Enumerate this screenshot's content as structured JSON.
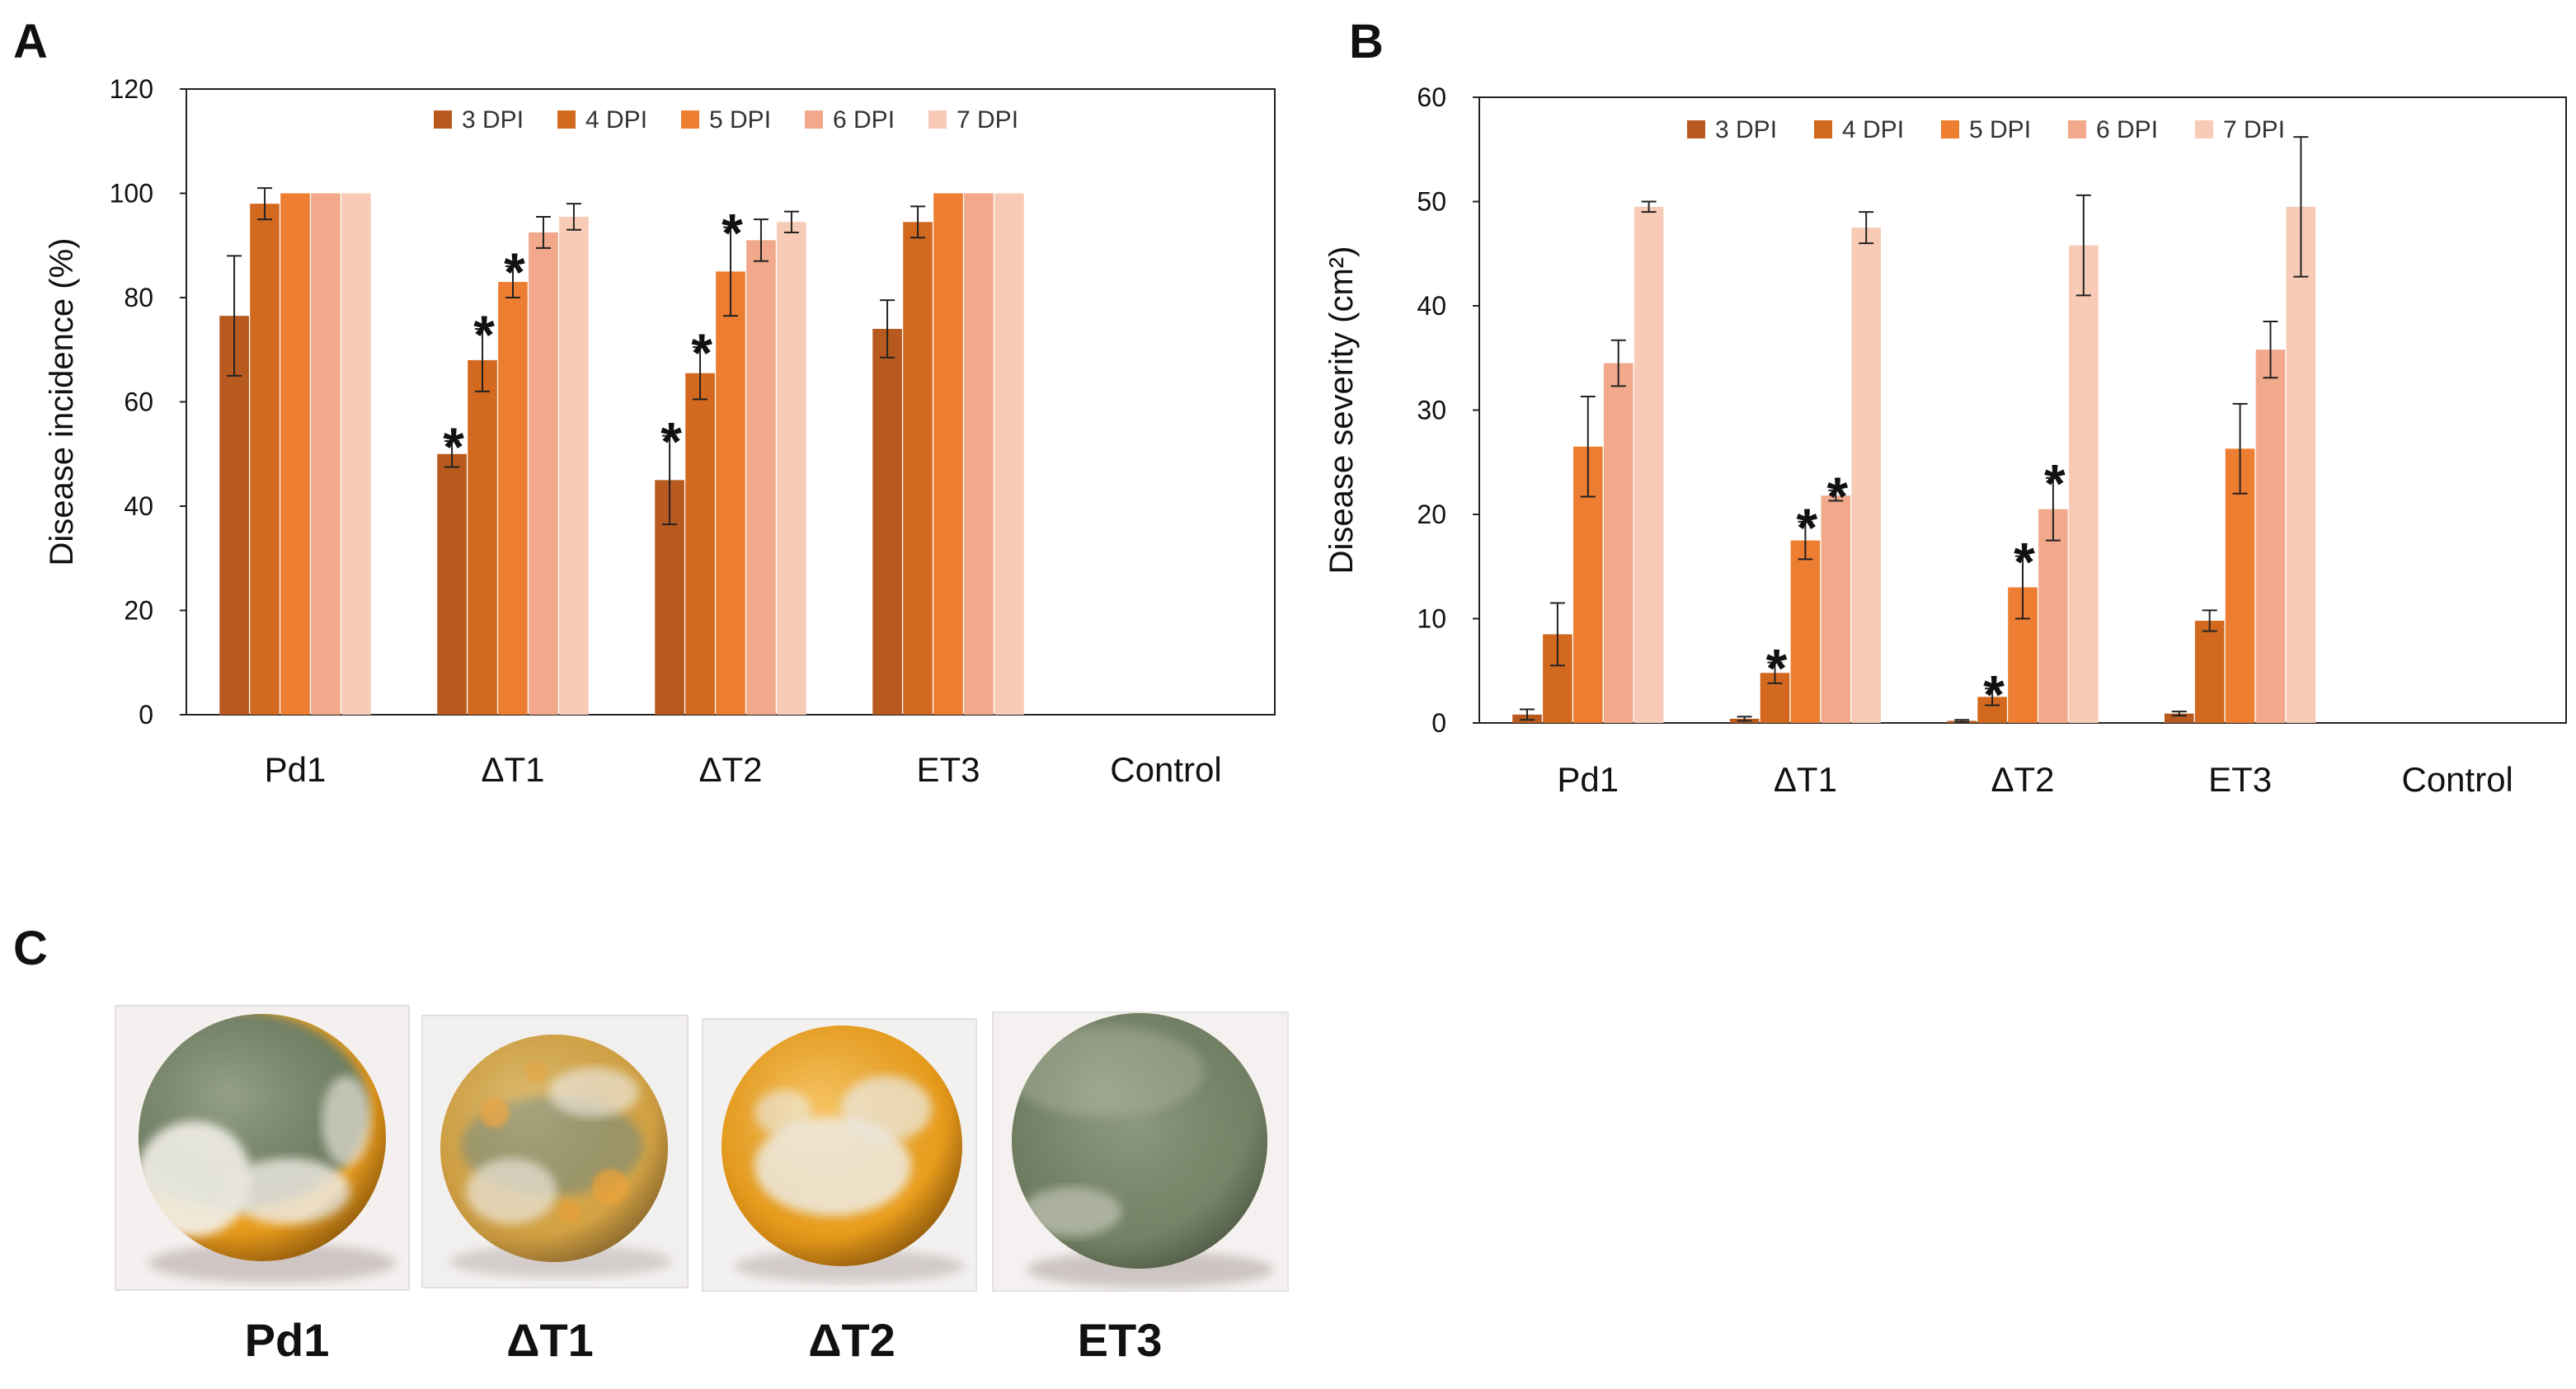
{
  "colors": {
    "series": [
      "#b85a20",
      "#d2691e",
      "#ed7d31",
      "#f1a88b",
      "#f8cbb6"
    ],
    "axis": "#111111",
    "error": "#222222"
  },
  "chart_data": [
    {
      "type": "bar",
      "panel": "A",
      "ylabel": "Disease incidence (%)",
      "ylim": [
        0,
        120
      ],
      "yticks": [
        0,
        20,
        40,
        60,
        80,
        100,
        120
      ],
      "categories": [
        "Pd1",
        "ΔT1",
        "ΔT2",
        "ET3",
        "Control"
      ],
      "legend": "top",
      "series": [
        {
          "name": "3 DPI",
          "values": [
            76.5,
            50,
            45,
            74,
            0
          ],
          "errors": [
            11.5,
            2.5,
            8.5,
            5.5,
            0
          ],
          "stars": [
            false,
            true,
            true,
            false,
            false
          ]
        },
        {
          "name": "4 DPI",
          "values": [
            98,
            68,
            65.5,
            94.5,
            0
          ],
          "errors": [
            3,
            6,
            5,
            3,
            0
          ],
          "stars": [
            false,
            true,
            true,
            false,
            false
          ]
        },
        {
          "name": "5 DPI",
          "values": [
            100,
            83,
            85,
            100,
            0
          ],
          "errors": [
            0,
            3,
            8.5,
            0,
            0
          ],
          "stars": [
            false,
            true,
            true,
            false,
            false
          ]
        },
        {
          "name": "6 DPI",
          "values": [
            100,
            92.5,
            91,
            100,
            0
          ],
          "errors": [
            0,
            3,
            4,
            0,
            0
          ],
          "stars": [
            false,
            false,
            false,
            false,
            false
          ]
        },
        {
          "name": "7 DPI",
          "values": [
            100,
            95.5,
            94.5,
            100,
            0
          ],
          "errors": [
            0,
            2.5,
            2,
            0,
            0
          ],
          "stars": [
            false,
            false,
            false,
            false,
            false
          ]
        }
      ]
    },
    {
      "type": "bar",
      "panel": "B",
      "ylabel": "Disease severity (cm²)",
      "ylim": [
        0,
        60
      ],
      "yticks": [
        0,
        10,
        20,
        30,
        40,
        50,
        60
      ],
      "categories": [
        "Pd1",
        "ΔT1",
        "ΔT2",
        "ET3",
        "Control"
      ],
      "legend": "top",
      "series": [
        {
          "name": "3 DPI",
          "values": [
            0.8,
            0.4,
            0.2,
            0.9,
            0
          ],
          "errors": [
            0.5,
            0.2,
            0.1,
            0.2,
            0
          ],
          "stars": [
            false,
            false,
            false,
            false,
            false
          ]
        },
        {
          "name": "4 DPI",
          "values": [
            8.5,
            4.8,
            2.5,
            9.8,
            0
          ],
          "errors": [
            3,
            1,
            0.8,
            1,
            0
          ],
          "stars": [
            false,
            true,
            true,
            false,
            false
          ]
        },
        {
          "name": "5 DPI",
          "values": [
            26.5,
            17.5,
            13,
            26.3,
            0
          ],
          "errors": [
            4.8,
            1.8,
            3,
            4.3,
            0
          ],
          "stars": [
            false,
            true,
            true,
            false,
            false
          ]
        },
        {
          "name": "6 DPI",
          "values": [
            34.5,
            21.8,
            20.5,
            35.8,
            0
          ],
          "errors": [
            2.2,
            0.5,
            3,
            2.7,
            0
          ],
          "stars": [
            false,
            true,
            true,
            false,
            false
          ]
        },
        {
          "name": "7 DPI",
          "values": [
            49.5,
            47.5,
            45.8,
            49.5,
            0
          ],
          "errors": [
            0.5,
            1.5,
            4.8,
            6.7,
            0
          ],
          "stars": [
            false,
            false,
            false,
            false,
            false
          ]
        }
      ]
    }
  ],
  "panel_c": {
    "letter": "C",
    "photos": [
      {
        "label": "Pd1",
        "mold": "heavy-green"
      },
      {
        "label": "ΔT1",
        "mold": "speckled"
      },
      {
        "label": "ΔT2",
        "mold": "white-spots"
      },
      {
        "label": "ET3",
        "mold": "heavy-green"
      }
    ]
  }
}
